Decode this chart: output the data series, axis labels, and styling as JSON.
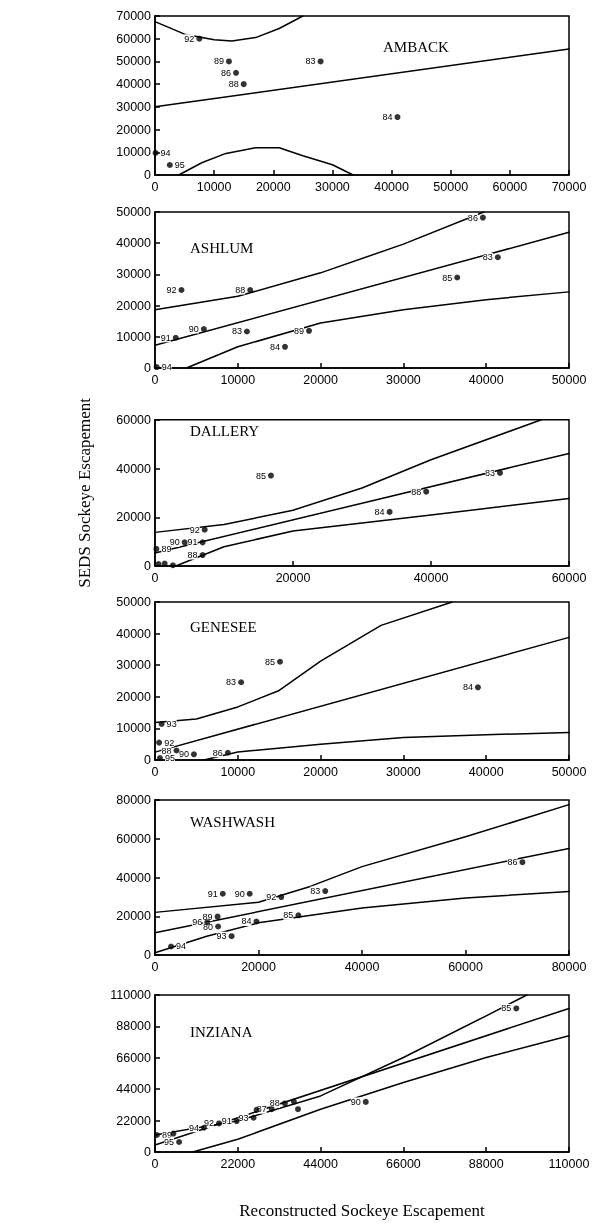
{
  "chart_data": [
    {
      "type": "scatter",
      "title": "AMBACK",
      "xlim": [
        0,
        70000
      ],
      "ylim": [
        0,
        70000
      ],
      "xticks": [
        0,
        10000,
        20000,
        30000,
        40000,
        50000,
        60000,
        70000
      ],
      "yticks": [
        0,
        10000,
        20000,
        30000,
        40000,
        50000,
        60000,
        70000
      ],
      "marker": "circle",
      "series": [
        {
          "type": "scatter",
          "color": "#000000",
          "x": [
            7500,
            12500,
            13700,
            15000,
            28000,
            41000,
            100,
            2500
          ],
          "values": [
            60000,
            50000,
            45000,
            40000,
            50000,
            25500,
            9700,
            4400
          ]
        },
        {
          "type": "line",
          "color": "#000000",
          "marker": "none",
          "x": [
            0,
            70000
          ],
          "values": [
            30000,
            55500
          ]
        },
        {
          "type": "line",
          "color": "#000000",
          "marker": "none",
          "x": [
            0,
            5000,
            10000,
            13000,
            17000,
            21000,
            25000
          ],
          "values": [
            67500,
            62000,
            59500,
            59000,
            60500,
            64500,
            70000
          ]
        },
        {
          "type": "line",
          "color": "#000000",
          "marker": "none",
          "x": [
            4000,
            8000,
            12000,
            17000,
            21000,
            25000,
            30000,
            33500
          ],
          "values": [
            0,
            5500,
            9500,
            12000,
            12000,
            8500,
            4500,
            0
          ]
        }
      ],
      "annotations": [
        {
          "text": "92",
          "x": 7500,
          "y": 60000
        },
        {
          "text": "89",
          "x": 12500,
          "y": 50000
        },
        {
          "text": "86",
          "x": 13700,
          "y": 45000
        },
        {
          "text": "88",
          "x": 15000,
          "y": 40000
        },
        {
          "text": "83",
          "x": 28000,
          "y": 50000
        },
        {
          "text": "84",
          "x": 41000,
          "y": 25500
        },
        {
          "text": "94",
          "x": 100,
          "y": 9700
        },
        {
          "text": "95",
          "x": 2500,
          "y": 4400
        }
      ]
    },
    {
      "type": "scatter",
      "title": "ASHLUM",
      "xlim": [
        0,
        50000
      ],
      "ylim": [
        0,
        50000
      ],
      "xticks": [
        0,
        10000,
        20000,
        30000,
        40000,
        50000
      ],
      "yticks": [
        0,
        10000,
        20000,
        30000,
        40000,
        50000
      ],
      "marker": "circle",
      "series": [
        {
          "type": "scatter",
          "color": "#000000",
          "x": [
            39600,
            41400,
            36500,
            3200,
            11500,
            5900,
            2500,
            11100,
            15700,
            18600,
            200
          ],
          "values": [
            48200,
            35500,
            29000,
            25000,
            25000,
            12500,
            9700,
            11700,
            6800,
            11900,
            300
          ]
        },
        {
          "type": "line",
          "color": "#000000",
          "marker": "none",
          "x": [
            0,
            50000
          ],
          "values": [
            7300,
            43500
          ]
        },
        {
          "type": "line",
          "color": "#000000",
          "marker": "none",
          "x": [
            0,
            10000,
            20000,
            30000,
            39700
          ],
          "values": [
            18700,
            23000,
            30500,
            39700,
            50000
          ]
        },
        {
          "type": "line",
          "color": "#000000",
          "marker": "none",
          "x": [
            3800,
            10000,
            20000,
            30000,
            40000,
            50000
          ],
          "values": [
            0,
            6800,
            14400,
            18700,
            21900,
            24400
          ]
        }
      ],
      "annotations": [
        {
          "text": "86",
          "x": 39600,
          "y": 48200
        },
        {
          "text": "83",
          "x": 41400,
          "y": 35500
        },
        {
          "text": "85",
          "x": 36500,
          "y": 29000
        },
        {
          "text": "92",
          "x": 3200,
          "y": 25000
        },
        {
          "text": "88",
          "x": 11500,
          "y": 25000
        },
        {
          "text": "90",
          "x": 5900,
          "y": 12500
        },
        {
          "text": "91",
          "x": 2500,
          "y": 9700
        },
        {
          "text": "83",
          "x": 11100,
          "y": 11700
        },
        {
          "text": "84",
          "x": 15700,
          "y": 6800
        },
        {
          "text": "89",
          "x": 18600,
          "y": 11900
        },
        {
          "text": "94",
          "x": 200,
          "y": 300
        }
      ]
    },
    {
      "type": "scatter",
      "title": "DALLERY",
      "ylabel": "SEDS Sockeye Escapement",
      "xlim": [
        0,
        60000
      ],
      "ylim": [
        0,
        60000
      ],
      "xticks": [
        0,
        20000,
        40000,
        60000
      ],
      "yticks": [
        0,
        20000,
        40000,
        60000
      ],
      "marker": "circle",
      "series": [
        {
          "type": "scatter",
          "color": "#000000",
          "x": [
            16800,
            50000,
            39300,
            34000,
            7200,
            4300,
            6900,
            6900,
            200,
            500,
            1400,
            2600
          ],
          "values": [
            37100,
            38200,
            30500,
            22200,
            14900,
            9700,
            9700,
            4500,
            7000,
            800,
            1000,
            300
          ]
        },
        {
          "type": "line",
          "color": "#000000",
          "marker": "none",
          "x": [
            0,
            60000
          ],
          "values": [
            5300,
            46200
          ]
        },
        {
          "type": "line",
          "color": "#000000",
          "marker": "none",
          "x": [
            0,
            10000,
            20000,
            30000,
            40000,
            56000
          ],
          "values": [
            13800,
            17000,
            22900,
            32000,
            43600,
            60000
          ]
        },
        {
          "type": "line",
          "color": "#000000",
          "marker": "none",
          "x": [
            3000,
            10000,
            20000,
            40000,
            60000
          ],
          "values": [
            0,
            7900,
            14400,
            20900,
            27700
          ]
        }
      ],
      "annotations": [
        {
          "text": "85",
          "x": 16800,
          "y": 37100
        },
        {
          "text": "83",
          "x": 50000,
          "y": 38200
        },
        {
          "text": "88",
          "x": 39300,
          "y": 30500
        },
        {
          "text": "84",
          "x": 34000,
          "y": 22200
        },
        {
          "text": "92",
          "x": 7200,
          "y": 14900
        },
        {
          "text": "90",
          "x": 4300,
          "y": 9700
        },
        {
          "text": "91",
          "x": 6900,
          "y": 9700
        },
        {
          "text": "88",
          "x": 6900,
          "y": 4500
        },
        {
          "text": "89",
          "x": 200,
          "y": 7000
        }
      ]
    },
    {
      "type": "scatter",
      "title": "GENESEE",
      "xlim": [
        0,
        50000
      ],
      "ylim": [
        0,
        50000
      ],
      "xticks": [
        0,
        10000,
        20000,
        30000,
        40000,
        50000
      ],
      "yticks": [
        0,
        10000,
        20000,
        30000,
        40000,
        50000
      ],
      "marker": "circle",
      "series": [
        {
          "type": "scatter",
          "color": "#000000",
          "x": [
            15100,
            10400,
            39000,
            800,
            500,
            2600,
            4700,
            8800,
            600
          ],
          "values": [
            31100,
            24600,
            23000,
            11400,
            5500,
            3000,
            1800,
            2300,
            600
          ]
        },
        {
          "type": "line",
          "color": "#000000",
          "marker": "none",
          "x": [
            0,
            50000
          ],
          "values": [
            2500,
            38800
          ]
        },
        {
          "type": "line",
          "color": "#000000",
          "marker": "none",
          "x": [
            0,
            5000,
            10000,
            15000,
            20000,
            27300,
            35900
          ],
          "values": [
            11900,
            13000,
            16800,
            22000,
            31300,
            42600,
            50000
          ]
        },
        {
          "type": "line",
          "color": "#000000",
          "marker": "none",
          "x": [
            5900,
            10000,
            20000,
            30000,
            40000,
            50000
          ],
          "values": [
            0,
            2500,
            5000,
            7100,
            8000,
            8700
          ]
        }
      ],
      "annotations": [
        {
          "text": "85",
          "x": 15100,
          "y": 31100
        },
        {
          "text": "83",
          "x": 10400,
          "y": 24600
        },
        {
          "text": "84",
          "x": 39000,
          "y": 23000
        },
        {
          "text": "93",
          "x": 800,
          "y": 11400
        },
        {
          "text": "92",
          "x": 500,
          "y": 5500
        },
        {
          "text": "88",
          "x": 2600,
          "y": 3000
        },
        {
          "text": "90",
          "x": 4700,
          "y": 1800
        },
        {
          "text": "86",
          "x": 8800,
          "y": 2300
        },
        {
          "text": "95",
          "x": 600,
          "y": 600
        }
      ]
    },
    {
      "type": "scatter",
      "title": "WASHWASH",
      "xlim": [
        0,
        80000
      ],
      "ylim": [
        0,
        80000
      ],
      "xticks": [
        0,
        20000,
        40000,
        60000,
        80000
      ],
      "yticks": [
        0,
        20000,
        40000,
        60000,
        80000
      ],
      "marker": "circle",
      "series": [
        {
          "type": "scatter",
          "color": "#000000",
          "x": [
            71000,
            32900,
            13100,
            18300,
            24400,
            27700,
            19600,
            12100,
            10100,
            12200,
            14800,
            3100
          ],
          "values": [
            47900,
            33000,
            31600,
            31600,
            29900,
            20500,
            17300,
            19800,
            16900,
            14700,
            9700,
            4400
          ]
        },
        {
          "type": "line",
          "color": "#000000",
          "marker": "none",
          "x": [
            0,
            80000
          ],
          "values": [
            11500,
            55000
          ]
        },
        {
          "type": "line",
          "color": "#000000",
          "marker": "none",
          "x": [
            0,
            20000,
            30000,
            40000,
            60000,
            80000
          ],
          "values": [
            22000,
            27200,
            35400,
            45600,
            61000,
            77600
          ]
        },
        {
          "type": "line",
          "color": "#000000",
          "marker": "none",
          "x": [
            0,
            10000,
            20000,
            40000,
            60000,
            80000
          ],
          "values": [
            1200,
            9700,
            16600,
            24300,
            29400,
            32800
          ]
        }
      ],
      "annotations": [
        {
          "text": "86",
          "x": 71000,
          "y": 47900
        },
        {
          "text": "83",
          "x": 32900,
          "y": 33000
        },
        {
          "text": "91",
          "x": 13100,
          "y": 31600
        },
        {
          "text": "90",
          "x": 18300,
          "y": 31600
        },
        {
          "text": "92",
          "x": 24400,
          "y": 29900
        },
        {
          "text": "85",
          "x": 27700,
          "y": 20500
        },
        {
          "text": "84",
          "x": 19600,
          "y": 17300
        },
        {
          "text": "89",
          "x": 12100,
          "y": 19800
        },
        {
          "text": "96",
          "x": 10100,
          "y": 16900
        },
        {
          "text": "80",
          "x": 12200,
          "y": 14700
        },
        {
          "text": "93",
          "x": 14800,
          "y": 9700
        },
        {
          "text": "94",
          "x": 3100,
          "y": 4400
        }
      ]
    },
    {
      "type": "scatter",
      "title": "INZIANA",
      "xlabel": "Reconstructed Sockeye Escapement",
      "xlim": [
        0,
        110000
      ],
      "ylim": [
        0,
        110000
      ],
      "xticks": [
        0,
        22000,
        44000,
        66000,
        88000,
        110000
      ],
      "yticks": [
        0,
        22000,
        44000,
        66000,
        88000,
        110000
      ],
      "marker": "circle",
      "series": [
        {
          "type": "scatter",
          "color": "#000000",
          "x": [
            96000,
            56000,
            500,
            4900,
            6400,
            13000,
            17000,
            21700,
            26200,
            27000,
            31000,
            34500,
            36900,
            38000
          ],
          "values": [
            100600,
            35100,
            11900,
            12900,
            7000,
            17000,
            20000,
            21700,
            24000,
            29500,
            30000,
            34000,
            35300,
            30000
          ]
        },
        {
          "type": "line",
          "color": "#000000",
          "marker": "none",
          "x": [
            0,
            110000
          ],
          "values": [
            4900,
            100600
          ]
        },
        {
          "type": "line",
          "color": "#000000",
          "marker": "none",
          "x": [
            0,
            22000,
            44000,
            66000,
            88000,
            98800
          ],
          "values": [
            11900,
            21800,
            39300,
            66200,
            95400,
            110000
          ]
        },
        {
          "type": "line",
          "color": "#000000",
          "marker": "none",
          "x": [
            10000,
            22000,
            44000,
            66000,
            88000,
            110000
          ],
          "values": [
            0,
            8900,
            30000,
            48700,
            66200,
            81400
          ]
        }
      ],
      "annotations": [
        {
          "text": "85",
          "x": 96000,
          "y": 100600
        },
        {
          "text": "90",
          "x": 56000,
          "y": 35100
        },
        {
          "text": "89",
          "x": 500,
          "y": 11900
        },
        {
          "text": "95",
          "x": 6400,
          "y": 7000
        },
        {
          "text": "94",
          "x": 13000,
          "y": 17000
        },
        {
          "text": "92",
          "x": 17000,
          "y": 20000
        },
        {
          "text": "91",
          "x": 21700,
          "y": 21700
        },
        {
          "text": "93",
          "x": 26200,
          "y": 24000
        },
        {
          "text": "87",
          "x": 31000,
          "y": 30000
        },
        {
          "text": "88",
          "x": 34500,
          "y": 34000
        }
      ]
    }
  ]
}
